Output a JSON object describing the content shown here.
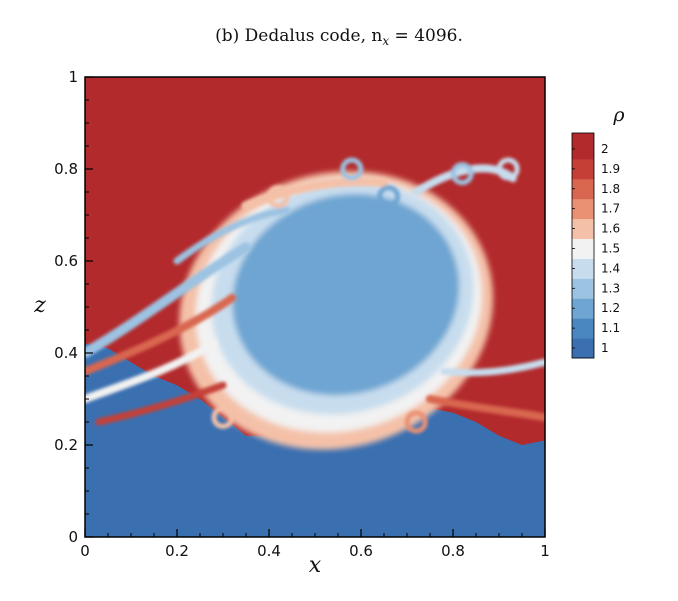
{
  "chart_data": {
    "type": "heatmap",
    "title": "(b) Dedalus code, n",
    "title_sub": "x",
    "title_tail": " = 4096.",
    "xlabel": "x",
    "ylabel": "z",
    "xlim": [
      0,
      1
    ],
    "ylim": [
      0,
      1
    ],
    "xticks": [
      0,
      0.2,
      0.4,
      0.6,
      0.8,
      1
    ],
    "yticks": [
      0,
      0.2,
      0.4,
      0.6,
      0.8,
      1
    ],
    "xtick_labels": [
      "0",
      "0.2",
      "0.4",
      "0.6",
      "0.8",
      "1"
    ],
    "ytick_labels": [
      "0",
      "0.2",
      "0.4",
      "0.6",
      "0.8",
      "1"
    ],
    "grid": false,
    "colorbar": {
      "title": "ρ",
      "placement": "right",
      "range": [
        0.95,
        2.08
      ],
      "levels": [
        1,
        1.1,
        1.2,
        1.3,
        1.4,
        1.5,
        1.6,
        1.7,
        1.8,
        1.9,
        2
      ],
      "level_labels": [
        "1",
        "1.1",
        "1.2",
        "1.3",
        "1.4",
        "1.5",
        "1.6",
        "1.7",
        "1.8",
        "1.9",
        "2"
      ],
      "colormap": [
        "#3a6fb0",
        "#4a86c0",
        "#6ea5d2",
        "#9cc3e2",
        "#c7ddee",
        "#f2f2f2",
        "#f4c1a8",
        "#ea9174",
        "#d9664f",
        "#c53f37",
        "#b22a2c"
      ]
    },
    "field": {
      "upper_density": 2.05,
      "lower_density": 1.0,
      "interface_z": [
        0.42,
        0.41,
        0.38,
        0.35,
        0.33,
        0.3,
        0.26,
        0.22,
        0.22,
        0.23,
        0.24,
        0.24,
        0.25,
        0.26,
        0.27,
        0.28,
        0.27,
        0.25,
        0.22,
        0.2,
        0.21
      ],
      "interface_x": [
        0.0,
        0.05,
        0.1,
        0.15,
        0.2,
        0.25,
        0.3,
        0.35,
        0.4,
        0.45,
        0.5,
        0.55,
        0.6,
        0.65,
        0.7,
        0.75,
        0.8,
        0.85,
        0.9,
        0.95,
        1.0
      ],
      "vortex_center": [
        0.56,
        0.52
      ],
      "vortex_radius": [
        0.28,
        0.25
      ],
      "vortex_density": 1.2
    }
  }
}
